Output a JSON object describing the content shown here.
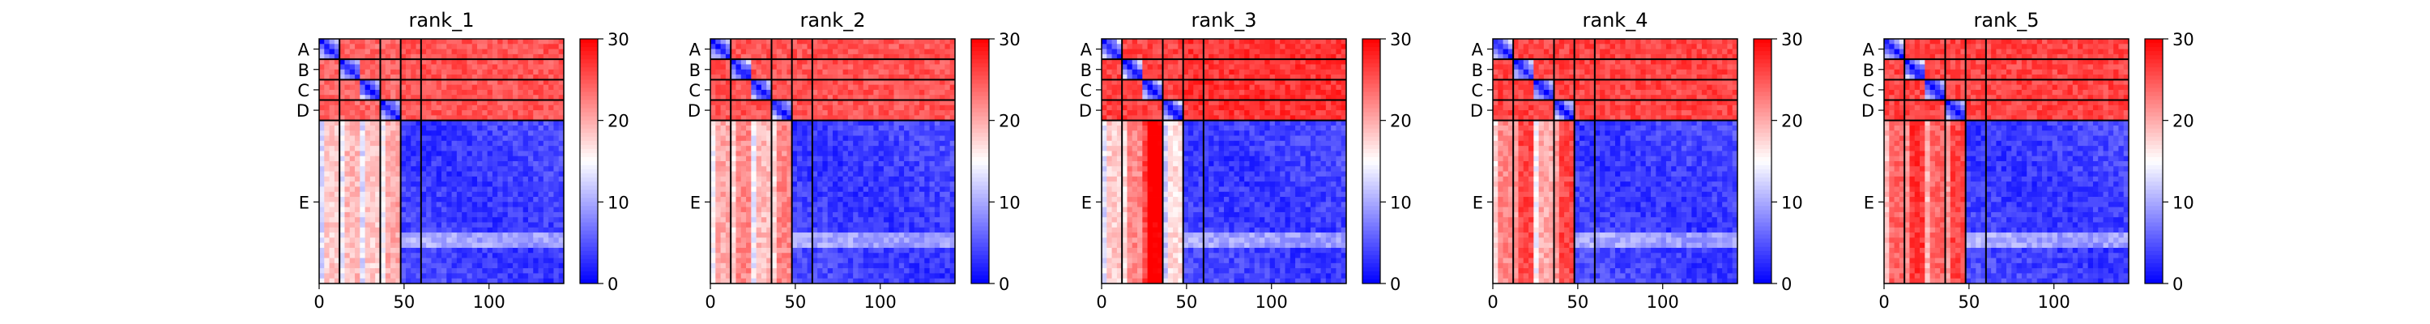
{
  "figure": {
    "panel_count": 5
  },
  "chart_data": [
    {
      "type": "heatmap",
      "title": "rank_1",
      "xlabel": "",
      "ylabel": "",
      "x_ticks": [
        0,
        50,
        100
      ],
      "xlim": [
        0,
        144
      ],
      "chains": [
        {
          "label": "A",
          "start": 0,
          "end": 12
        },
        {
          "label": "B",
          "start": 12,
          "end": 24
        },
        {
          "label": "C",
          "start": 24,
          "end": 36
        },
        {
          "label": "D",
          "start": 36,
          "end": 48
        },
        {
          "label": "E",
          "start": 48,
          "end": 144
        }
      ],
      "x_chain_boundaries": [
        12,
        36,
        48,
        60
      ],
      "colorbar": {
        "min": 0,
        "max": 30,
        "ticks": [
          0,
          10,
          20,
          30
        ],
        "colormap": "bwr"
      },
      "block_means": {
        "AB": 24,
        "AC": 24,
        "AD": 24,
        "AE_top": 25,
        "E_left_A": 16,
        "E_left_B": 17,
        "E_left_C": 16,
        "E_left_D": 18,
        "E_self": 3
      }
    },
    {
      "type": "heatmap",
      "title": "rank_2",
      "xlabel": "",
      "ylabel": "",
      "x_ticks": [
        0,
        50,
        100
      ],
      "xlim": [
        0,
        144
      ],
      "chains": [
        {
          "label": "A",
          "start": 0,
          "end": 12
        },
        {
          "label": "B",
          "start": 12,
          "end": 24
        },
        {
          "label": "C",
          "start": 24,
          "end": 36
        },
        {
          "label": "D",
          "start": 36,
          "end": 48
        },
        {
          "label": "E",
          "start": 48,
          "end": 144
        }
      ],
      "x_chain_boundaries": [
        12,
        36,
        48,
        60
      ],
      "colorbar": {
        "min": 0,
        "max": 30,
        "ticks": [
          0,
          10,
          20,
          30
        ],
        "colormap": "bwr"
      },
      "block_means": {
        "AB": 25,
        "AC": 25,
        "AD": 25,
        "AE_top": 25,
        "E_left_A": 18,
        "E_left_B": 20,
        "E_left_C": 17,
        "E_left_D": 20,
        "E_self": 3
      }
    },
    {
      "type": "heatmap",
      "title": "rank_3",
      "xlabel": "",
      "ylabel": "",
      "x_ticks": [
        0,
        50,
        100
      ],
      "xlim": [
        0,
        144
      ],
      "chains": [
        {
          "label": "A",
          "start": 0,
          "end": 12
        },
        {
          "label": "B",
          "start": 12,
          "end": 24
        },
        {
          "label": "C",
          "start": 24,
          "end": 36
        },
        {
          "label": "D",
          "start": 36,
          "end": 48
        },
        {
          "label": "E",
          "start": 48,
          "end": 144
        }
      ],
      "x_chain_boundaries": [
        12,
        36,
        48,
        60
      ],
      "colorbar": {
        "min": 0,
        "max": 30,
        "ticks": [
          0,
          10,
          20,
          30
        ],
        "colormap": "bwr"
      },
      "block_means": {
        "AB": 26,
        "AC": 28,
        "AD": 28,
        "AE_top": 27,
        "E_left_A": 16,
        "E_left_B": 20,
        "E_left_C": 29,
        "E_left_D": 15,
        "E_self": 3
      }
    },
    {
      "type": "heatmap",
      "title": "rank_4",
      "xlabel": "",
      "ylabel": "",
      "x_ticks": [
        0,
        50,
        100
      ],
      "xlim": [
        0,
        144
      ],
      "chains": [
        {
          "label": "A",
          "start": 0,
          "end": 12
        },
        {
          "label": "B",
          "start": 12,
          "end": 24
        },
        {
          "label": "C",
          "start": 24,
          "end": 36
        },
        {
          "label": "D",
          "start": 36,
          "end": 48
        },
        {
          "label": "E",
          "start": 48,
          "end": 144
        }
      ],
      "x_chain_boundaries": [
        12,
        36,
        48,
        60
      ],
      "colorbar": {
        "min": 0,
        "max": 30,
        "ticks": [
          0,
          10,
          20,
          30
        ],
        "colormap": "bwr"
      },
      "block_means": {
        "AB": 26,
        "AC": 27,
        "AD": 27,
        "AE_top": 26,
        "E_left_A": 20,
        "E_left_B": 24,
        "E_left_C": 18,
        "E_left_D": 24,
        "E_self": 3
      }
    },
    {
      "type": "heatmap",
      "title": "rank_5",
      "xlabel": "",
      "ylabel": "",
      "x_ticks": [
        0,
        50,
        100
      ],
      "xlim": [
        0,
        144
      ],
      "chains": [
        {
          "label": "A",
          "start": 0,
          "end": 12
        },
        {
          "label": "B",
          "start": 12,
          "end": 24
        },
        {
          "label": "C",
          "start": 24,
          "end": 36
        },
        {
          "label": "D",
          "start": 36,
          "end": 48
        },
        {
          "label": "E",
          "start": 48,
          "end": 144
        }
      ],
      "x_chain_boundaries": [
        12,
        36,
        48,
        60
      ],
      "colorbar": {
        "min": 0,
        "max": 30,
        "ticks": [
          0,
          10,
          20,
          30
        ],
        "colormap": "bwr"
      },
      "block_means": {
        "AB": 26,
        "AC": 27,
        "AD": 27,
        "AE_top": 26,
        "E_left_A": 22,
        "E_left_B": 25,
        "E_left_C": 22,
        "E_left_D": 24,
        "E_self": 3
      }
    }
  ]
}
